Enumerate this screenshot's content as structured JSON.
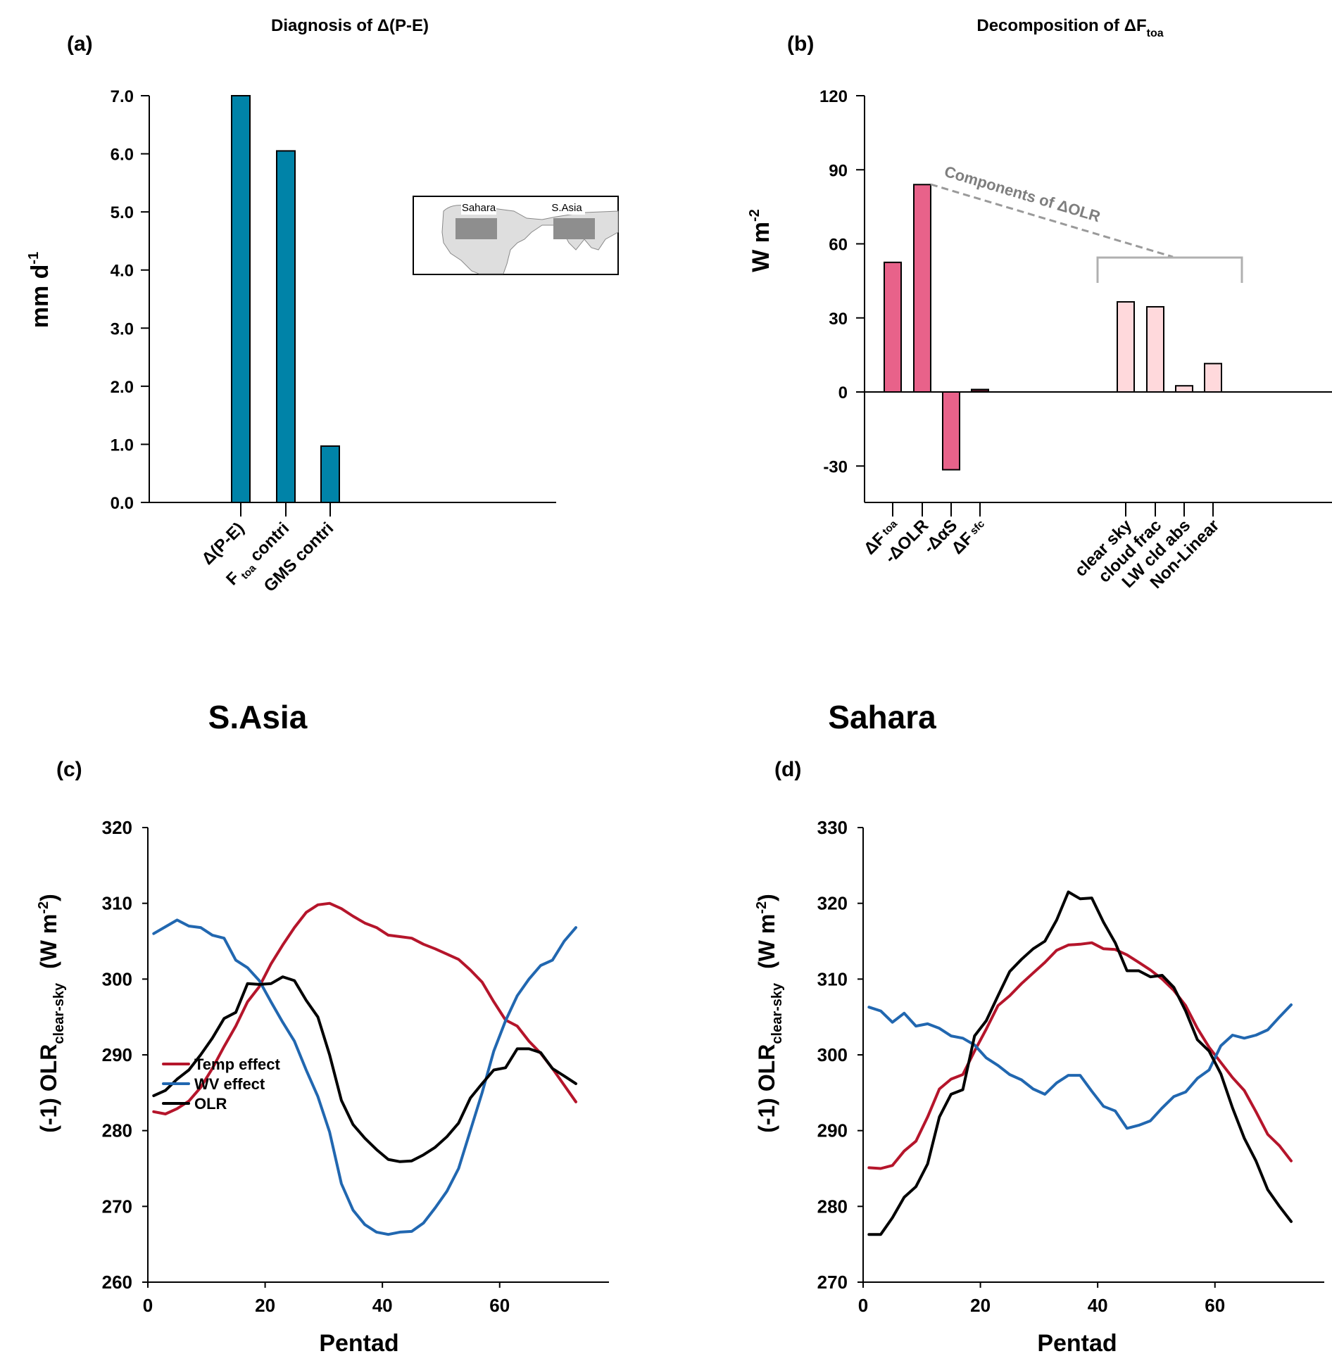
{
  "chart_data": [
    {
      "panel": "(a)",
      "type": "bar",
      "title": "Diagnosis of Δ(P-E)",
      "xlabel": "",
      "ylabel": "mm d",
      "ylabel_sup": "-1",
      "ylim": [
        0,
        7
      ],
      "yticks": [
        "0.0",
        "1.0",
        "2.0",
        "3.0",
        "4.0",
        "5.0",
        "6.0",
        "7.0"
      ],
      "categories": [
        "Δ(P-E)",
        "F toa contri",
        "GMS contri"
      ],
      "category_labels": [
        {
          "main": "Δ(P-E)",
          "sub": ""
        },
        {
          "main": "F",
          "sub": "toa",
          "tail": " contri"
        },
        {
          "main": "GMS contri",
          "sub": ""
        }
      ],
      "values": [
        7.0,
        6.05,
        0.97
      ],
      "color": "#0083A8",
      "inset_map": {
        "labels": [
          "Sahara",
          "S.Asia"
        ],
        "description": "Region map showing Sahara and S.Asia boxes"
      }
    },
    {
      "panel": "(b)",
      "type": "bar",
      "title": "Decomposition of  ΔF",
      "title_sub": "toa",
      "ylabel": "W m",
      "ylabel_sup": "-2",
      "ylim": [
        -40,
        120
      ],
      "yticks": [
        "-30",
        "0",
        "30",
        "60",
        "90",
        "120"
      ],
      "categories": [
        "ΔF toa",
        "-ΔOLR",
        "-ΔαS",
        "ΔF sfc",
        "clear sky",
        "cloud frac",
        "LW cld abs",
        "Non-Linear"
      ],
      "category_labels": [
        {
          "main": "ΔF",
          "sub": "toa"
        },
        {
          "main": "-ΔOLR",
          "sub": ""
        },
        {
          "main": "-ΔαS",
          "sub": ""
        },
        {
          "main": "ΔF",
          "sub": "sfc"
        },
        {
          "main": "clear sky",
          "sub": ""
        },
        {
          "main": "cloud frac",
          "sub": ""
        },
        {
          "main": "LW cld abs",
          "sub": ""
        },
        {
          "main": "Non-Linear",
          "sub": ""
        }
      ],
      "values": [
        52.5,
        84.0,
        -31.5,
        1.0,
        36.5,
        34.5,
        2.5,
        11.5
      ],
      "colors": [
        "#E8628A",
        "#E8628A",
        "#E8628A",
        "#5A1A2C",
        "#FFD9DC",
        "#FFD9DC",
        "#FFD9DC",
        "#FFD9DC"
      ],
      "annotation": "Components of ΔOLR"
    },
    {
      "panel": "(c)",
      "type": "line",
      "title": "S.Asia",
      "xlabel": "Pentad",
      "ylabel": "(-1) OLR",
      "ylabel_sub": "clear-sky",
      "ylabel_unit": "(W m",
      "ylabel_unit_sup": "-2",
      "xlim": [
        0,
        75
      ],
      "ylim": [
        260,
        320
      ],
      "xticks": [
        "0",
        "20",
        "40",
        "60"
      ],
      "yticks": [
        "260",
        "270",
        "280",
        "290",
        "300",
        "310",
        "320"
      ],
      "legend": [
        "Temp effect",
        "WV effect",
        "OLR"
      ],
      "legend_placement": "bottom-left",
      "x": [
        1,
        3,
        5,
        7,
        9,
        11,
        13,
        15,
        17,
        19,
        21,
        23,
        25,
        27,
        29,
        31,
        33,
        35,
        37,
        39,
        41,
        43,
        45,
        47,
        49,
        51,
        53,
        55,
        57,
        59,
        61,
        63,
        65,
        67,
        69,
        71,
        73
      ],
      "series": [
        {
          "name": "Temp effect",
          "color": "#B5152B",
          "values": [
            282.5,
            282.2,
            282.9,
            283.9,
            285.7,
            288.2,
            291.1,
            293.8,
            297.0,
            299.0,
            302.0,
            304.5,
            306.8,
            308.8,
            309.8,
            310.0,
            309.3,
            308.3,
            307.4,
            306.8,
            305.8,
            305.6,
            305.4,
            304.6,
            304.0,
            303.3,
            302.6,
            301.2,
            299.6,
            297.0,
            294.6,
            293.8,
            291.8,
            290.2,
            288.2,
            286.0,
            283.8
          ]
        },
        {
          "name": "WV effect",
          "color": "#2167B0",
          "values": [
            306.0,
            306.9,
            307.8,
            307.0,
            306.8,
            305.8,
            305.4,
            302.5,
            301.5,
            299.8,
            297.0,
            294.3,
            291.8,
            288.0,
            284.5,
            279.8,
            273.0,
            269.5,
            267.6,
            266.6,
            266.3,
            266.6,
            266.7,
            267.8,
            269.8,
            272.0,
            275.0,
            280.0,
            285.0,
            290.5,
            294.5,
            297.8,
            300.0,
            301.8,
            302.5,
            305.0,
            306.8
          ]
        },
        {
          "name": "OLR",
          "color": "#000000",
          "values": [
            284.6,
            285.3,
            286.8,
            288.0,
            290.0,
            292.2,
            294.8,
            295.6,
            299.4,
            299.3,
            299.4,
            300.3,
            299.8,
            297.2,
            295.0,
            290.0,
            284.0,
            280.8,
            279.0,
            277.5,
            276.2,
            275.9,
            276.0,
            276.8,
            277.8,
            279.2,
            281.0,
            284.3,
            286.2,
            288.0,
            288.3,
            290.8,
            290.8,
            290.3,
            288.2,
            287.2,
            286.2
          ]
        }
      ]
    },
    {
      "panel": "(d)",
      "type": "line",
      "title": "Sahara",
      "xlabel": "Pentad",
      "ylabel": "(-1) OLR",
      "ylabel_sub": "clear-sky",
      "ylabel_unit": "(W m",
      "ylabel_unit_sup": "-2",
      "xlim": [
        0,
        75
      ],
      "ylim": [
        270,
        330
      ],
      "xticks": [
        "0",
        "20",
        "40",
        "60"
      ],
      "yticks": [
        "270",
        "280",
        "290",
        "300",
        "310",
        "320",
        "330"
      ],
      "legend": [
        "Temp effect",
        "WV effect",
        "OLR"
      ],
      "x": [
        1,
        3,
        5,
        7,
        9,
        11,
        13,
        15,
        17,
        19,
        21,
        23,
        25,
        27,
        29,
        31,
        33,
        35,
        37,
        39,
        41,
        43,
        45,
        47,
        49,
        51,
        53,
        55,
        57,
        59,
        61,
        63,
        65,
        67,
        69,
        71,
        73
      ],
      "series": [
        {
          "name": "Temp effect",
          "color": "#B5152B",
          "values": [
            285.1,
            285.0,
            285.4,
            287.3,
            288.6,
            291.8,
            295.5,
            296.8,
            297.4,
            300.5,
            303.4,
            306.5,
            307.8,
            309.4,
            310.8,
            312.2,
            313.8,
            314.5,
            314.6,
            314.8,
            314.0,
            313.9,
            313.2,
            312.2,
            311.2,
            310.0,
            308.5,
            306.5,
            303.5,
            301.0,
            299.0,
            297.0,
            295.3,
            292.5,
            289.5,
            288.0,
            286.0
          ]
        },
        {
          "name": "WV effect",
          "color": "#2167B0",
          "values": [
            306.3,
            305.8,
            304.3,
            305.5,
            303.8,
            304.1,
            303.5,
            302.5,
            302.2,
            301.3,
            299.6,
            298.6,
            297.4,
            296.7,
            295.5,
            294.8,
            296.3,
            297.3,
            297.3,
            295.2,
            293.2,
            292.6,
            290.3,
            290.7,
            291.3,
            293.0,
            294.5,
            295.1,
            296.9,
            298.0,
            301.2,
            302.6,
            302.2,
            302.6,
            303.3,
            305.0,
            306.6
          ]
        },
        {
          "name": "OLR",
          "color": "#000000",
          "values": [
            276.3,
            276.3,
            278.5,
            281.2,
            282.6,
            285.6,
            291.8,
            294.8,
            295.4,
            302.5,
            304.5,
            307.8,
            311.0,
            312.6,
            314.0,
            315.0,
            317.8,
            321.5,
            320.6,
            320.7,
            317.5,
            314.8,
            311.1,
            311.1,
            310.3,
            310.5,
            308.9,
            305.8,
            302.0,
            300.5,
            297.5,
            293.0,
            289.0,
            286.0,
            282.2,
            280.0,
            278.0
          ]
        }
      ]
    }
  ],
  "panel_labels": [
    "(a)",
    "(b)",
    "(c)",
    "(d)"
  ]
}
